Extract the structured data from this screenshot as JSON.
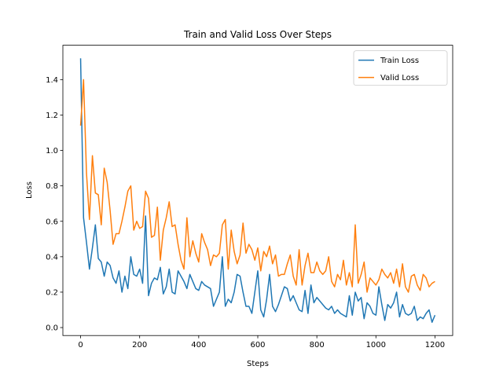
{
  "chart_data": {
    "type": "line",
    "title": "Train and Valid Loss Over Steps",
    "xlabel": "Steps",
    "ylabel": "Loss",
    "x": [
      0,
      10,
      20,
      30,
      40,
      50,
      60,
      70,
      80,
      90,
      100,
      110,
      120,
      130,
      140,
      150,
      160,
      170,
      180,
      190,
      200,
      210,
      220,
      230,
      240,
      250,
      260,
      270,
      280,
      290,
      300,
      310,
      320,
      330,
      340,
      350,
      360,
      370,
      380,
      390,
      400,
      410,
      420,
      430,
      440,
      450,
      460,
      470,
      480,
      490,
      500,
      510,
      520,
      530,
      540,
      550,
      560,
      570,
      580,
      590,
      600,
      610,
      620,
      630,
      640,
      650,
      660,
      670,
      680,
      690,
      700,
      710,
      720,
      730,
      740,
      750,
      760,
      770,
      780,
      790,
      800,
      810,
      820,
      830,
      840,
      850,
      860,
      870,
      880,
      890,
      900,
      910,
      920,
      930,
      940,
      950,
      960,
      970,
      980,
      990,
      1000,
      1010,
      1020,
      1030,
      1040,
      1050,
      1060,
      1070,
      1080,
      1090,
      1100,
      1110,
      1120,
      1130,
      1140,
      1150,
      1160,
      1170,
      1180,
      1190,
      1200
    ],
    "series": [
      {
        "name": "Train Loss",
        "color": "#1f77b4",
        "values": [
          1.52,
          0.62,
          0.48,
          0.33,
          0.45,
          0.58,
          0.39,
          0.37,
          0.29,
          0.37,
          0.35,
          0.28,
          0.25,
          0.32,
          0.2,
          0.29,
          0.22,
          0.4,
          0.3,
          0.29,
          0.33,
          0.25,
          0.63,
          0.18,
          0.25,
          0.28,
          0.27,
          0.34,
          0.19,
          0.23,
          0.33,
          0.2,
          0.19,
          0.32,
          0.29,
          0.26,
          0.22,
          0.3,
          0.26,
          0.22,
          0.21,
          0.26,
          0.24,
          0.23,
          0.22,
          0.12,
          0.16,
          0.2,
          0.4,
          0.12,
          0.16,
          0.14,
          0.2,
          0.3,
          0.29,
          0.2,
          0.12,
          0.12,
          0.08,
          0.2,
          0.32,
          0.1,
          0.06,
          0.16,
          0.3,
          0.12,
          0.09,
          0.13,
          0.18,
          0.23,
          0.22,
          0.15,
          0.18,
          0.14,
          0.1,
          0.09,
          0.21,
          0.08,
          0.24,
          0.14,
          0.17,
          0.15,
          0.13,
          0.11,
          0.1,
          0.12,
          0.08,
          0.1,
          0.08,
          0.07,
          0.06,
          0.18,
          0.07,
          0.2,
          0.15,
          0.17,
          0.05,
          0.14,
          0.12,
          0.08,
          0.07,
          0.23,
          0.13,
          0.04,
          0.13,
          0.11,
          0.14,
          0.2,
          0.06,
          0.13,
          0.08,
          0.07,
          0.08,
          0.12,
          0.04,
          0.06,
          0.05,
          0.08,
          0.1,
          0.03,
          0.07
        ]
      },
      {
        "name": "Valid Loss",
        "color": "#ff7f0e",
        "values": [
          1.14,
          1.4,
          0.87,
          0.61,
          0.97,
          0.76,
          0.75,
          0.58,
          0.9,
          0.82,
          0.66,
          0.47,
          0.53,
          0.53,
          0.6,
          0.68,
          0.77,
          0.8,
          0.55,
          0.6,
          0.56,
          0.57,
          0.77,
          0.73,
          0.51,
          0.52,
          0.68,
          0.38,
          0.55,
          0.62,
          0.71,
          0.57,
          0.58,
          0.47,
          0.38,
          0.33,
          0.62,
          0.4,
          0.49,
          0.42,
          0.37,
          0.53,
          0.48,
          0.44,
          0.35,
          0.41,
          0.4,
          0.42,
          0.58,
          0.61,
          0.33,
          0.55,
          0.43,
          0.36,
          0.41,
          0.59,
          0.42,
          0.47,
          0.44,
          0.38,
          0.45,
          0.32,
          0.43,
          0.4,
          0.46,
          0.36,
          0.41,
          0.29,
          0.3,
          0.3,
          0.36,
          0.41,
          0.29,
          0.24,
          0.44,
          0.24,
          0.35,
          0.42,
          0.31,
          0.31,
          0.37,
          0.32,
          0.3,
          0.32,
          0.4,
          0.26,
          0.23,
          0.3,
          0.27,
          0.38,
          0.24,
          0.31,
          0.23,
          0.58,
          0.25,
          0.3,
          0.37,
          0.2,
          0.28,
          0.26,
          0.24,
          0.27,
          0.33,
          0.3,
          0.28,
          0.31,
          0.25,
          0.33,
          0.23,
          0.36,
          0.23,
          0.2,
          0.29,
          0.3,
          0.24,
          0.21,
          0.3,
          0.28,
          0.23,
          0.25,
          0.26
        ]
      }
    ],
    "xlim": [
      -60,
      1260
    ],
    "xticks": [
      0,
      200,
      400,
      600,
      800,
      1000,
      1200
    ],
    "ylim": [
      -0.045,
      1.594
    ],
    "yticks": [
      {
        "value": 0,
        "label": "0.0"
      },
      0.2,
      0.4,
      0.6,
      0.8,
      {
        "value": 1,
        "label": "1.0"
      },
      1.2,
      1.4
    ],
    "legend": "upper right",
    "grid": false
  }
}
